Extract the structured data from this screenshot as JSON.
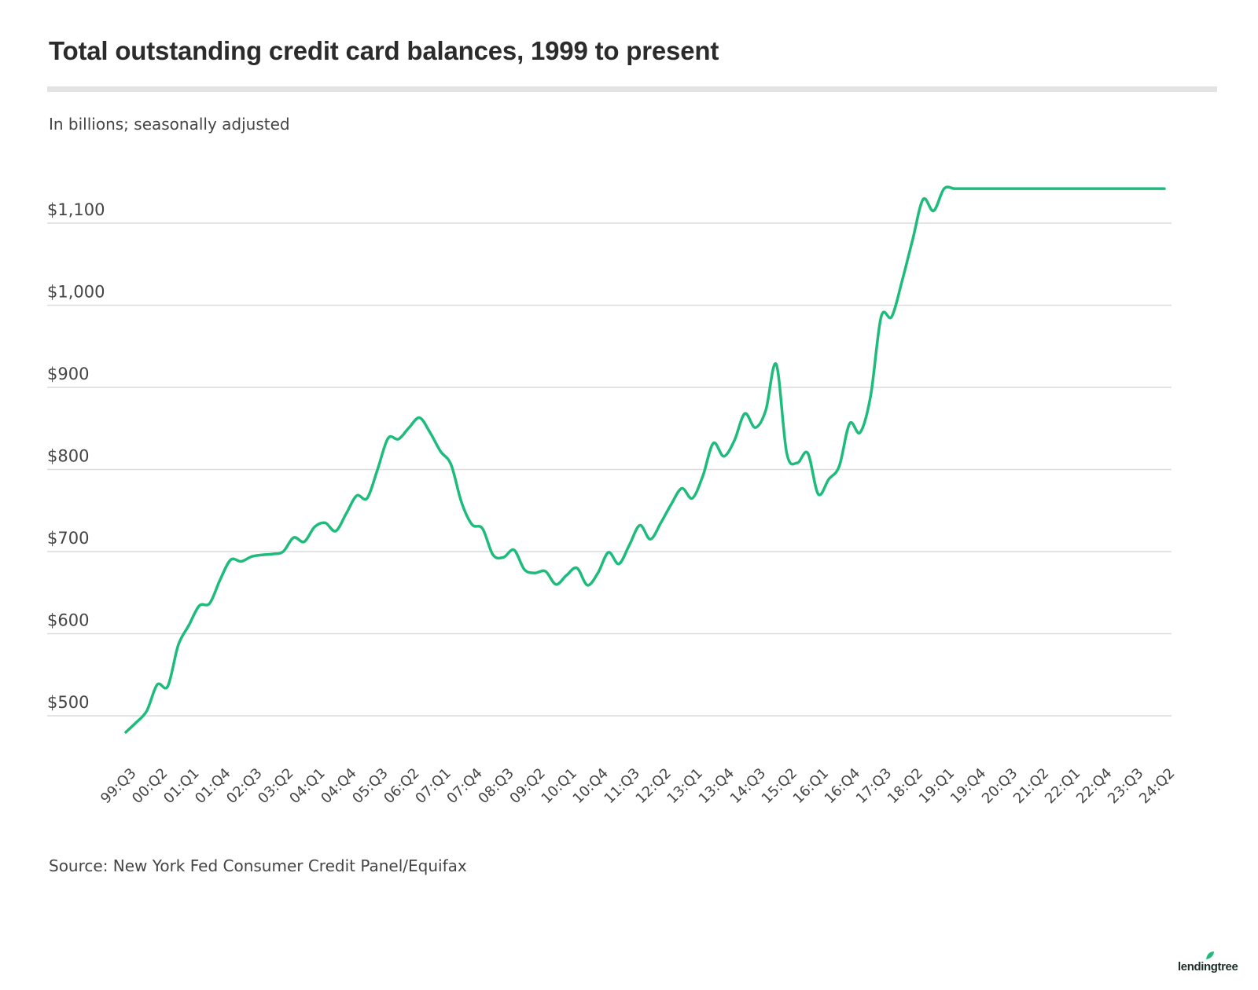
{
  "chart_data": {
    "type": "line",
    "title": "Total outstanding credit card balances, 1999 to present",
    "subtitle": "In billions; seasonally adjusted",
    "source": "Source: New York Fed Consumer Credit Panel/Equifax",
    "ylim": [
      440,
      1160
    ],
    "yticks": [
      500,
      600,
      700,
      800,
      900,
      1000,
      1100
    ],
    "ytick_labels": [
      "$500",
      "$600",
      "$700",
      "$800",
      "$900",
      "$1,000",
      "$1,100"
    ],
    "grid": true,
    "line_color": "#1dbc7c",
    "x_tick_labels": [
      "99:Q3",
      "00:Q2",
      "01:Q1",
      "01:Q4",
      "02:Q3",
      "03:Q2",
      "04:Q1",
      "04:Q4",
      "05:Q3",
      "06:Q2",
      "07:Q1",
      "07:Q4",
      "08:Q3",
      "09:Q2",
      "10:Q1",
      "10:Q4",
      "11:Q3",
      "12:Q2",
      "13:Q1",
      "13:Q4",
      "14:Q3",
      "15:Q2",
      "16:Q1",
      "16:Q4",
      "17:Q3",
      "18:Q2",
      "19:Q1",
      "19:Q4",
      "20:Q3",
      "21:Q2",
      "22:Q1",
      "22:Q4",
      "23:Q3",
      "24:Q2"
    ],
    "x": [
      "99:Q3",
      "99:Q4",
      "00:Q1",
      "00:Q2",
      "00:Q3",
      "00:Q4",
      "01:Q1",
      "01:Q2",
      "01:Q3",
      "01:Q4",
      "02:Q1",
      "02:Q2",
      "02:Q3",
      "02:Q4",
      "03:Q1",
      "03:Q2",
      "03:Q3",
      "03:Q4",
      "04:Q1",
      "04:Q2",
      "04:Q3",
      "04:Q4",
      "05:Q1",
      "05:Q2",
      "05:Q3",
      "05:Q4",
      "06:Q1",
      "06:Q2",
      "06:Q3",
      "06:Q4",
      "07:Q1",
      "07:Q2",
      "07:Q3",
      "07:Q4",
      "08:Q1",
      "08:Q2",
      "08:Q3",
      "08:Q4",
      "09:Q1",
      "09:Q2",
      "09:Q3",
      "09:Q4",
      "10:Q1",
      "10:Q2",
      "10:Q3",
      "10:Q4",
      "11:Q1",
      "11:Q2",
      "11:Q3",
      "11:Q4",
      "12:Q1",
      "12:Q2",
      "12:Q3",
      "12:Q4",
      "13:Q1",
      "13:Q2",
      "13:Q3",
      "13:Q4",
      "14:Q1",
      "14:Q2",
      "14:Q3",
      "14:Q4",
      "15:Q1",
      "15:Q2",
      "15:Q3",
      "15:Q4",
      "16:Q1",
      "16:Q2",
      "16:Q3",
      "16:Q4",
      "17:Q1",
      "17:Q2",
      "17:Q3",
      "17:Q4",
      "18:Q1",
      "18:Q2",
      "18:Q3",
      "18:Q4",
      "19:Q1",
      "19:Q2",
      "19:Q3",
      "19:Q4",
      "20:Q1",
      "20:Q2",
      "20:Q3",
      "20:Q4",
      "21:Q1",
      "21:Q2",
      "21:Q3",
      "21:Q4",
      "22:Q1",
      "22:Q2",
      "22:Q3",
      "22:Q4",
      "23:Q1",
      "23:Q2",
      "23:Q3",
      "23:Q4",
      "24:Q1",
      "24:Q2"
    ],
    "values": [
      480,
      492,
      506,
      538,
      536,
      586,
      610,
      634,
      637,
      666,
      690,
      688,
      694,
      696,
      697,
      700,
      717,
      712,
      730,
      735,
      725,
      746,
      768,
      765,
      800,
      838,
      837,
      851,
      863,
      845,
      822,
      806,
      760,
      733,
      728,
      696,
      693,
      702,
      678,
      674,
      676,
      660,
      671,
      680,
      659,
      674,
      699,
      685,
      708,
      732,
      715,
      735,
      758,
      777,
      765,
      792,
      832,
      816,
      835,
      868,
      851,
      872,
      928,
      820,
      808,
      820,
      770,
      788,
      804,
      856,
      845,
      890,
      986,
      986,
      1030,
      1080,
      1129,
      1115,
      1142,
      1142,
      1142,
      1142,
      1142,
      1142,
      1142,
      1142,
      1142,
      1142,
      1142,
      1142,
      1142,
      1142,
      1142,
      1142,
      1142,
      1142,
      1142,
      1142,
      1142,
      1142
    ]
  },
  "branding": {
    "logo_text": "lendingtree"
  }
}
